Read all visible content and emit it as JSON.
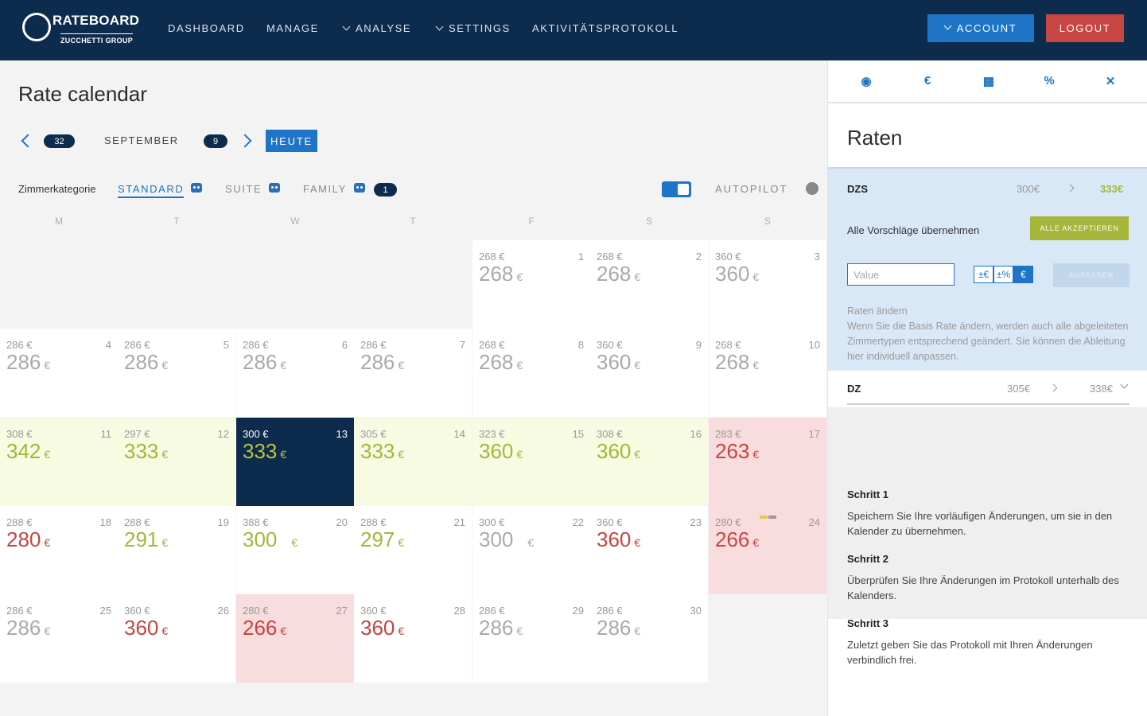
{
  "brand": {
    "title": "RATEBOARD",
    "subtitle": "ZUCCHETTI GROUP"
  },
  "nav": {
    "dashboard": "DASHBOARD",
    "manage": "MANAGE",
    "analyse": "ANALYSE",
    "settings": "SETTINGS",
    "log": "AKTIVITÄTSPROTOKOLL",
    "account": "ACCOUNT",
    "logout": "LOGOUT"
  },
  "page": {
    "title": "Rate calendar"
  },
  "calnav": {
    "prev_week": "32",
    "month": "SEPTEMBER",
    "next_week": "9",
    "today": "HEUTE"
  },
  "categories": {
    "label": "Zimmerkategorie",
    "standard": "STANDARD",
    "suite": "SUITE",
    "family": "FAMILY",
    "family_badge": "1",
    "autopilot": "AUTOPILOT"
  },
  "weekdays": [
    "M",
    "T",
    "W",
    "T",
    "F",
    "S",
    "S"
  ],
  "calendar": {
    "currency": "€",
    "days": [
      {
        "day": "1",
        "base": "268 €",
        "rate": "268"
      },
      {
        "day": "2",
        "base": "268 €",
        "rate": "268"
      },
      {
        "day": "3",
        "base": "360 €",
        "rate": "360"
      },
      {
        "day": "4",
        "base": "286 €",
        "rate": "286"
      },
      {
        "day": "5",
        "base": "286 €",
        "rate": "286"
      },
      {
        "day": "6",
        "base": "286 €",
        "rate": "286"
      },
      {
        "day": "7",
        "base": "286 €",
        "rate": "286"
      },
      {
        "day": "8",
        "base": "268 €",
        "rate": "268"
      },
      {
        "day": "9",
        "base": "360 €",
        "rate": "360"
      },
      {
        "day": "10",
        "base": "268 €",
        "rate": "268"
      },
      {
        "day": "11",
        "base": "308 €",
        "rate": "342"
      },
      {
        "day": "12",
        "base": "297 €",
        "rate": "333"
      },
      {
        "day": "13",
        "base": "300 €",
        "rate": "333"
      },
      {
        "day": "14",
        "base": "305 €",
        "rate": "333"
      },
      {
        "day": "15",
        "base": "323 €",
        "rate": "360"
      },
      {
        "day": "16",
        "base": "308 €",
        "rate": "360"
      },
      {
        "day": "17",
        "base": "283 €",
        "rate": "263"
      },
      {
        "day": "18",
        "base": "288 €",
        "rate": "280"
      },
      {
        "day": "19",
        "base": "288 €",
        "rate": "291"
      },
      {
        "day": "20",
        "base": "388 €",
        "rate": "300"
      },
      {
        "day": "21",
        "base": "288 €",
        "rate": "297"
      },
      {
        "day": "22",
        "base": "300 €",
        "rate": "300"
      },
      {
        "day": "23",
        "base": "360 €",
        "rate": "360"
      },
      {
        "day": "24",
        "base": "280 €",
        "rate": "266"
      },
      {
        "day": "25",
        "base": "286 €",
        "rate": "286"
      },
      {
        "day": "26",
        "base": "360 €",
        "rate": "360"
      },
      {
        "day": "27",
        "base": "280 €",
        "rate": "266"
      },
      {
        "day": "28",
        "base": "360 €",
        "rate": "360"
      },
      {
        "day": "29",
        "base": "286 €",
        "rate": "286"
      },
      {
        "day": "30",
        "base": "286 €",
        "rate": "286"
      }
    ]
  },
  "panel": {
    "title": "Raten",
    "dzs": {
      "name": "DZS",
      "base": "300€",
      "new": "333€"
    },
    "accept_label": "Alle Vorschläge übernehmen",
    "accept_button": "ALLE AKZEPTIEREN",
    "value_placeholder": "Value",
    "units": [
      "±€",
      "±%",
      "€"
    ],
    "adjust_button": "ANPASSEN",
    "hint": "Raten ändern\nWenn Sie die Basis Rate ändern, werden auch alle abgeleiteten Zimmertypen entsprechend geändert. Sie können die Ableitung hier individuell anpassen.",
    "dz": {
      "name": "DZ",
      "base": "305€",
      "new": "338€"
    },
    "steps": [
      {
        "title": "Schritt 1",
        "text": "Speichern Sie Ihre vorläufigen Änderungen, um sie in den Kalender zu übernehmen."
      },
      {
        "title": "Schritt 2",
        "text": "Überprüfen Sie Ihre Änderungen im Protokoll unterhalb des Kalenders."
      },
      {
        "title": "Schritt 3",
        "text": "Zuletzt geben Sie das Protokoll mit Ihren Änderungen verbindlich frei."
      }
    ]
  }
}
